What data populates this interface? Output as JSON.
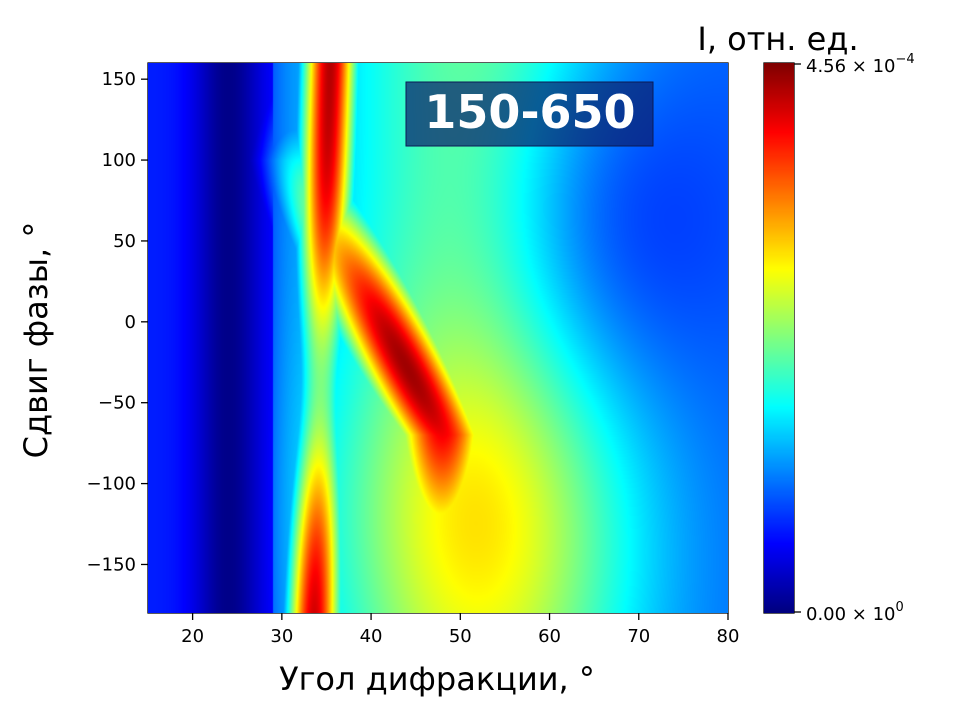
{
  "chart_data": {
    "type": "heatmap",
    "title": "",
    "annotation": "150-650",
    "xlabel": "Угол дифракции, °",
    "ylabel": "Сдвиг фазы, °",
    "colorbar_label": "I, отн. ед.",
    "colormap": "jet",
    "xlim": [
      15,
      80
    ],
    "ylim": [
      -180,
      160
    ],
    "x_ticks": [
      20,
      30,
      40,
      50,
      60,
      70,
      80
    ],
    "y_ticks": [
      150,
      100,
      50,
      0,
      -50,
      -100,
      -150
    ],
    "x_tick_labels": [
      "20",
      "30",
      "40",
      "50",
      "60",
      "70",
      "80"
    ],
    "y_tick_labels": [
      "150",
      "100",
      "50",
      "0",
      "−50",
      "−100",
      "−150"
    ],
    "colorbar_range": [
      0,
      0.000456
    ],
    "colorbar_max_label": {
      "mant": "4.56 × 10",
      "exp": "−4"
    },
    "colorbar_min_label": {
      "mant": "0.00 × 10",
      "exp": "0"
    },
    "features": [
      {
        "name": "left ridge",
        "x_range": [
          30,
          38
        ],
        "phase_range": [
          -180,
          160
        ],
        "intensity": 0.000456
      },
      {
        "name": "main lobe",
        "x_center": 42,
        "phase_center": -30,
        "intensity": 0.00041
      },
      {
        "name": "dark band",
        "x_range": [
          21,
          27
        ],
        "intensity": 0.0
      }
    ],
    "colors": {
      "annotation_box": "#0b1f6e",
      "annotation_text": "#ffffff"
    }
  }
}
